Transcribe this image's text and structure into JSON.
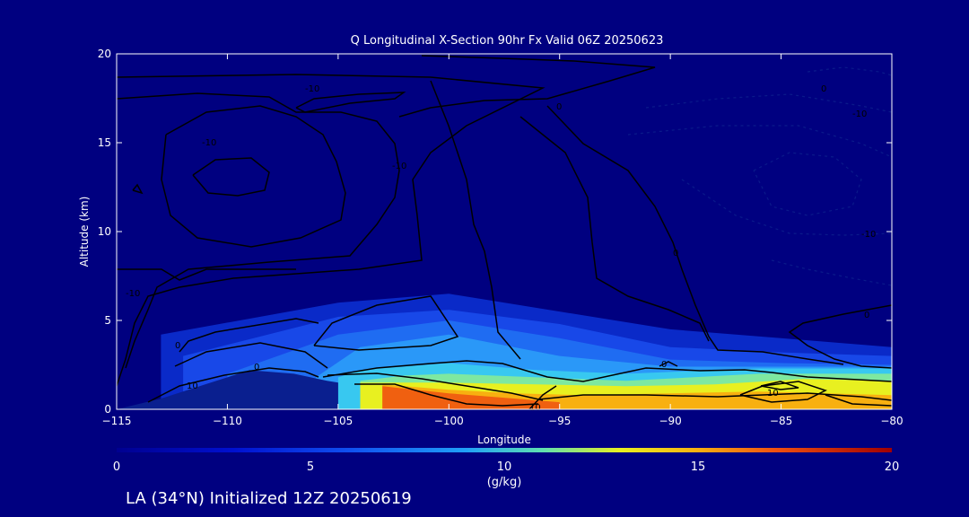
{
  "chart_data": {
    "type": "heatmap",
    "title": "Q Longitudinal X-Section 90hr  Fx Valid 06Z 20250623",
    "xlabel": "Longitude",
    "ylabel": "Altitude (km)",
    "xlim": [
      -115,
      -80
    ],
    "ylim": [
      0,
      20
    ],
    "x_ticks": [
      "-115",
      "-110",
      "-105",
      "-100",
      "-95",
      "-90",
      "-85",
      "-80"
    ],
    "y_ticks": [
      "0",
      "5",
      "10",
      "15",
      "20"
    ],
    "colorbar": {
      "range": [
        0,
        20
      ],
      "ticks": [
        "0",
        "5",
        "10",
        "15",
        "20"
      ],
      "label": "(g/kg)"
    },
    "moisture_bands": [
      {
        "q": 1,
        "x": [
          -113,
          -105,
          -100,
          -95,
          -90,
          -85,
          -80
        ],
        "top": [
          4.2,
          6.0,
          6.5,
          5.5,
          4.5,
          4.0,
          3.5
        ],
        "color": "#0a2ac8"
      },
      {
        "q": 2.5,
        "x": [
          -112,
          -105,
          -100,
          -95,
          -90,
          -85,
          -80
        ],
        "top": [
          3.0,
          5.2,
          5.6,
          4.8,
          3.5,
          3.2,
          3.0
        ],
        "color": "#1848e8"
      },
      {
        "q": 4,
        "x": [
          -110,
          -105,
          -100,
          -95,
          -90,
          -85,
          -80
        ],
        "top": [
          2.0,
          4.2,
          5.0,
          4.0,
          2.8,
          2.6,
          2.5
        ],
        "color": "#1f6cf2"
      },
      {
        "q": 6,
        "x": [
          -106,
          -104,
          -100,
          -95,
          -90,
          -85,
          -80
        ],
        "top": [
          1.8,
          3.5,
          4.2,
          3.0,
          2.4,
          2.4,
          2.4
        ],
        "color": "#2a98f8"
      },
      {
        "q": 8,
        "x": [
          -105,
          -104,
          -100,
          -96,
          -92,
          -86,
          -80
        ],
        "top": [
          1.8,
          2.2,
          2.6,
          2.2,
          2.0,
          2.3,
          2.3
        ],
        "color": "#38c8f0"
      },
      {
        "q": 10,
        "x": [
          -104,
          -102,
          -100,
          -96,
          -92,
          -86,
          -80
        ],
        "top": [
          1.6,
          1.9,
          2.0,
          1.8,
          1.6,
          2.0,
          2.0
        ],
        "color": "#7ee8a0"
      },
      {
        "q": 12,
        "x": [
          -104,
          -100,
          -96,
          -92,
          -88,
          -84,
          -80
        ],
        "top": [
          1.5,
          1.5,
          1.4,
          1.3,
          1.4,
          1.7,
          1.6
        ],
        "color": "#e8f020"
      },
      {
        "q": 14,
        "x": [
          -103,
          -100,
          -97,
          -94,
          -90,
          -86,
          -80
        ],
        "top": [
          1.4,
          1.1,
          0.9,
          0.8,
          0.9,
          1.0,
          0.8
        ],
        "color": "#f8b010"
      },
      {
        "q": 16,
        "x": [
          -103,
          -100,
          -97,
          -95
        ],
        "top": [
          1.3,
          0.9,
          0.6,
          0.4
        ],
        "color": "#f06010"
      }
    ],
    "terrain": {
      "x": [
        -115,
        -113,
        -111,
        -109,
        -107,
        -105.5,
        -105
      ],
      "top": [
        0.0,
        0.6,
        1.4,
        2.2,
        2.0,
        1.6,
        1.5
      ],
      "color": "#0a1f8f"
    },
    "contour_labels": [
      "-10",
      "-10",
      "-10",
      "-10",
      "0",
      "0",
      "0",
      "10",
      "0",
      "10",
      "0",
      "-10",
      "-10",
      "0",
      "0",
      "10"
    ]
  },
  "footer": "LA (34°N) Initialized 12Z 20250619"
}
